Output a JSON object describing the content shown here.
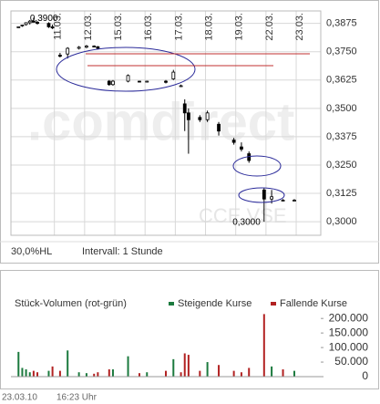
{
  "chart_data": [
    {
      "type": "candlestick",
      "color": "#000000",
      "xlim": [
        0,
        82
      ],
      "xticks": [
        {
          "value": 11.5,
          "label": "11.03."
        },
        {
          "value": 19.5,
          "label": "12.03."
        },
        {
          "value": 27.5,
          "label": "15.03."
        },
        {
          "value": 35.5,
          "label": "16.03."
        },
        {
          "value": 43.5,
          "label": "17.03."
        },
        {
          "value": 51.5,
          "label": "18.03."
        },
        {
          "value": 59.5,
          "label": "19.03."
        },
        {
          "value": 67.5,
          "label": "22.03."
        },
        {
          "value": 75.5,
          "label": "23.03."
        }
      ],
      "ylim": [
        0.294,
        0.393
      ],
      "yticks": [
        {
          "value": 0.3,
          "label": "0,3000"
        },
        {
          "value": 0.3125,
          "label": "0,3125"
        },
        {
          "value": 0.325,
          "label": "0,3250"
        },
        {
          "value": 0.3375,
          "label": "0,3375"
        },
        {
          "value": 0.35,
          "label": "0,3500"
        },
        {
          "value": 0.3625,
          "label": "0,3625"
        },
        {
          "value": 0.375,
          "label": "0,3750"
        },
        {
          "value": 0.3875,
          "label": "0,3875"
        }
      ],
      "grid": true,
      "x": [
        2,
        3,
        4,
        5,
        6,
        7,
        10,
        11,
        13,
        15,
        18,
        20,
        22,
        23,
        26,
        27,
        31,
        34,
        36,
        41,
        43,
        45,
        46,
        47,
        50,
        52,
        55,
        59,
        61,
        63,
        67,
        69,
        72,
        75
      ],
      "open": [
        0.386,
        0.3865,
        0.387,
        0.3878,
        0.3885,
        0.388,
        0.3875,
        0.386,
        0.3735,
        0.374,
        0.3765,
        0.377,
        0.3775,
        0.3772,
        0.362,
        0.3605,
        0.362,
        0.362,
        0.3618,
        0.362,
        0.363,
        0.36,
        0.352,
        0.348,
        0.346,
        0.345,
        0.343,
        0.336,
        0.333,
        0.33,
        0.314,
        0.31,
        0.3095,
        0.3095
      ],
      "high": [
        0.3862,
        0.387,
        0.388,
        0.389,
        0.39,
        0.3885,
        0.388,
        0.387,
        0.3745,
        0.377,
        0.3775,
        0.378,
        0.3778,
        0.3775,
        0.3625,
        0.3625,
        0.365,
        0.3622,
        0.3622,
        0.3625,
        0.367,
        0.3605,
        0.354,
        0.35,
        0.347,
        0.349,
        0.344,
        0.337,
        0.335,
        0.331,
        0.315,
        0.314,
        0.31,
        0.31
      ],
      "low": [
        0.3858,
        0.386,
        0.3865,
        0.387,
        0.388,
        0.387,
        0.3855,
        0.385,
        0.3725,
        0.372,
        0.376,
        0.3765,
        0.377,
        0.376,
        0.36,
        0.36,
        0.3615,
        0.3615,
        0.3615,
        0.361,
        0.3625,
        0.3595,
        0.34,
        0.33,
        0.344,
        0.344,
        0.338,
        0.334,
        0.331,
        0.326,
        0.3,
        0.308,
        0.309,
        0.309
      ],
      "close": [
        0.386,
        0.3868,
        0.3878,
        0.3885,
        0.388,
        0.3875,
        0.386,
        0.3855,
        0.373,
        0.3765,
        0.377,
        0.3775,
        0.3772,
        0.3765,
        0.3605,
        0.362,
        0.3645,
        0.3618,
        0.362,
        0.3615,
        0.366,
        0.36,
        0.348,
        0.345,
        0.345,
        0.348,
        0.34,
        0.335,
        0.332,
        0.327,
        0.31,
        0.311,
        0.3095,
        0.3095
      ],
      "annotations": [
        {
          "text": "0,3900",
          "x": 6,
          "y": 0.39
        },
        {
          "text": "0,3000",
          "x": 67,
          "y": 0.3
        }
      ],
      "watermark": [
        ".comdirect",
        "CCE VSE"
      ],
      "range_label": "30,0%HL",
      "interval_label": "Intervall: 1 Stunde"
    },
    {
      "type": "bar",
      "title": "Stück-Volumen (rot-grün)",
      "xlim": [
        0,
        82
      ],
      "ylim": [
        0,
        210000
      ],
      "yticks": [
        0,
        {
          "value": 50000,
          "label": "50.000"
        },
        {
          "value": 100000,
          "label": "100.000"
        },
        {
          "value": 150000,
          "label": "150.000"
        },
        {
          "value": 200000,
          "label": "200.000"
        }
      ],
      "x": [
        2,
        3,
        4,
        5,
        6,
        7,
        10,
        11,
        13,
        15,
        18,
        20,
        22,
        23,
        26,
        27,
        31,
        34,
        36,
        41,
        43,
        45,
        46,
        47,
        50,
        52,
        55,
        59,
        61,
        63,
        67,
        69,
        72,
        75
      ],
      "series": [
        {
          "name": "Steigende Kurse",
          "color": "#1b7a3e",
          "values": [
            85000,
            30000,
            25000,
            15000,
            null,
            null,
            20000,
            null,
            null,
            90000,
            15000,
            12000,
            null,
            null,
            null,
            25000,
            70000,
            null,
            15000,
            null,
            60000,
            null,
            null,
            null,
            null,
            50000,
            null,
            null,
            null,
            null,
            null,
            35000,
            null,
            20000
          ]
        },
        {
          "name": "Fallende Kurse",
          "color": "#b22222",
          "values": [
            null,
            null,
            null,
            null,
            20000,
            15000,
            null,
            35000,
            20000,
            null,
            null,
            null,
            10000,
            15000,
            25000,
            null,
            null,
            12000,
            null,
            20000,
            null,
            15000,
            80000,
            75000,
            20000,
            null,
            40000,
            20000,
            15000,
            30000,
            215000,
            null,
            25000,
            null
          ]
        }
      ]
    }
  ],
  "footer": {
    "date": "23.03.10",
    "time": "16:23 Uhr"
  }
}
